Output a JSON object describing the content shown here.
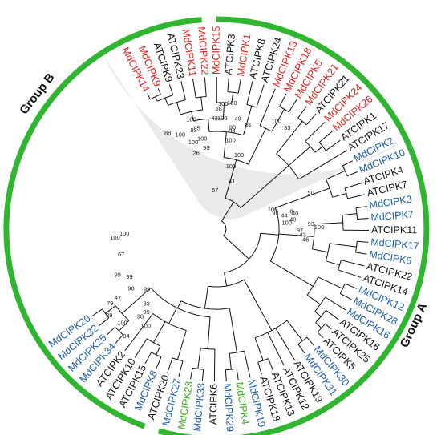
{
  "colors": {
    "apple": "#e0231c",
    "apple_blue": "#1f5fa8",
    "arabidopsis": "#111111",
    "special_green": "#3cb01e",
    "group_arc": "#2fb52f",
    "group_b_shade": "#d8d8d8"
  },
  "groups": [
    {
      "label": "Group B"
    },
    {
      "label": "Group A"
    }
  ],
  "leaves": [
    {
      "label": "MdCIPK14",
      "color": "apple"
    },
    {
      "label": "MdCIPK9",
      "color": "apple"
    },
    {
      "label": "ATCIPK9",
      "color": "arabidopsis"
    },
    {
      "label": "ATCIPK23",
      "color": "arabidopsis"
    },
    {
      "label": "MdCIPK11",
      "color": "apple"
    },
    {
      "label": "MdCIPK22",
      "color": "apple"
    },
    {
      "label": "MdCIPK15",
      "color": "apple"
    },
    {
      "label": "ATCIPK3",
      "color": "arabidopsis"
    },
    {
      "label": "MdCIPK1",
      "color": "apple"
    },
    {
      "label": "ATCIPK8",
      "color": "arabidopsis"
    },
    {
      "label": "ATCIPK24",
      "color": "arabidopsis"
    },
    {
      "label": "MdCIPK13",
      "color": "apple"
    },
    {
      "label": "MdCIPK18",
      "color": "apple"
    },
    {
      "label": "MdCIPK5",
      "color": "apple"
    },
    {
      "label": "MdCIPK21",
      "color": "apple"
    },
    {
      "label": "ATCIPK21",
      "color": "arabidopsis"
    },
    {
      "label": "MdCIPK24",
      "color": "apple"
    },
    {
      "label": "MdCIPK26",
      "color": "apple"
    },
    {
      "label": "ATCIPK1",
      "color": "arabidopsis"
    },
    {
      "label": "ATCIPK17",
      "color": "arabidopsis"
    },
    {
      "label": "MdCIPK2",
      "color": "apple_blue"
    },
    {
      "label": "MdCIPK10",
      "color": "apple_blue"
    },
    {
      "label": "ATCIPK4",
      "color": "arabidopsis"
    },
    {
      "label": "ATCIPK7",
      "color": "arabidopsis"
    },
    {
      "label": "MdCIPK3",
      "color": "apple_blue"
    },
    {
      "label": "MdCIPK7",
      "color": "apple_blue"
    },
    {
      "label": "ATCIPK11",
      "color": "arabidopsis"
    },
    {
      "label": "MdCIPK17",
      "color": "apple_blue"
    },
    {
      "label": "MdCIPK6",
      "color": "apple_blue"
    },
    {
      "label": "ATCIPK22",
      "color": "arabidopsis"
    },
    {
      "label": "ATCIPK14",
      "color": "arabidopsis"
    },
    {
      "label": "MdCIPK12",
      "color": "apple_blue"
    },
    {
      "label": "MdCIPK28",
      "color": "apple_blue"
    },
    {
      "label": "MdCIPK16",
      "color": "apple_blue"
    },
    {
      "label": "ATCIPK16",
      "color": "arabidopsis"
    },
    {
      "label": "ATCIPK25",
      "color": "arabidopsis"
    },
    {
      "label": "ATCIPK5",
      "color": "arabidopsis"
    },
    {
      "label": "MdCIPK30",
      "color": "apple_blue"
    },
    {
      "label": "MdCIPK31",
      "color": "apple_blue"
    },
    {
      "label": "ATCIPK19",
      "color": "arabidopsis"
    },
    {
      "label": "ATCIPK12",
      "color": "arabidopsis"
    },
    {
      "label": "ATCIPK13",
      "color": "arabidopsis"
    },
    {
      "label": "ATCIPK18",
      "color": "arabidopsis"
    },
    {
      "label": "MdCIPK19",
      "color": "apple_blue"
    },
    {
      "label": "MdCIPK4",
      "color": "special_green"
    },
    {
      "label": "MdCIPK29",
      "color": "apple_blue"
    },
    {
      "label": "ATCIPK6",
      "color": "arabidopsis"
    },
    {
      "label": "MdCIPK33",
      "color": "apple_blue"
    },
    {
      "label": "MdCIPK23",
      "color": "special_green"
    },
    {
      "label": "MdCIPK27",
      "color": "apple_blue"
    },
    {
      "label": "ATCIPK20",
      "color": "arabidopsis"
    },
    {
      "label": "MdCIPK8",
      "color": "apple_blue"
    },
    {
      "label": "ATCIPK15",
      "color": "arabidopsis"
    },
    {
      "label": "ATCIPK10",
      "color": "arabidopsis"
    },
    {
      "label": "ATCIPK2",
      "color": "arabidopsis"
    },
    {
      "label": "MdCIPK34",
      "color": "apple_blue"
    },
    {
      "label": "MdCIPK25",
      "color": "apple_blue"
    },
    {
      "label": "MdCIPK32",
      "color": "apple_blue"
    },
    {
      "label": "MdCIPK20",
      "color": "apple_blue"
    }
  ],
  "bootstrap_values": [
    "94",
    "89",
    "100",
    "79",
    "47",
    "100",
    "98",
    "99",
    "33",
    "99",
    "98",
    "99",
    "99",
    "67",
    "100",
    "100",
    "88",
    "100",
    "100",
    "99",
    "57",
    "41",
    "100",
    "98",
    "44",
    "40",
    "100",
    "8",
    "40",
    "97",
    "43",
    "93",
    "100",
    "46",
    "90",
    "81",
    "98",
    "100",
    "100",
    "100",
    "100",
    "26",
    "93",
    "95",
    "100",
    "49",
    "100",
    "43",
    "58",
    "100",
    "100",
    "100",
    "33",
    "50"
  ]
}
